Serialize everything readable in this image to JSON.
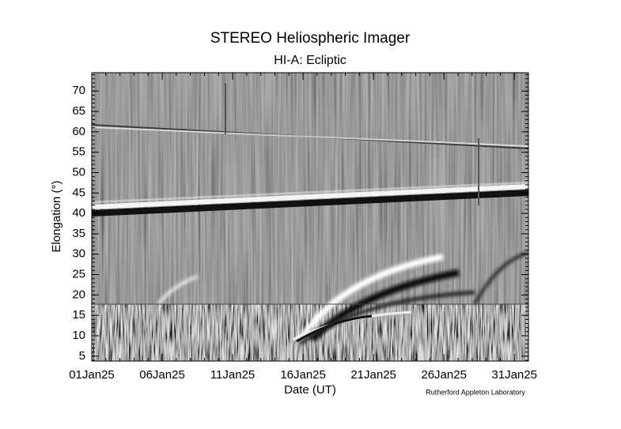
{
  "chart_data": {
    "type": "jmap",
    "title": "STEREO Heliospheric Imager",
    "subtitle": "HI-A: Ecliptic",
    "x_label": "Date (UT)",
    "y_label": "Elongation (°)",
    "credit": "Rutherford Appleton Laboratory",
    "xlim": [
      "2025-01-01",
      "2025-02-01"
    ],
    "xticks": [
      {
        "value": "2025-01-01",
        "label": "01Jan25"
      },
      {
        "value": "2025-01-06",
        "label": "06Jan25"
      },
      {
        "value": "2025-01-11",
        "label": "11Jan25"
      },
      {
        "value": "2025-01-16",
        "label": "16Jan25"
      },
      {
        "value": "2025-01-21",
        "label": "21Jan25"
      },
      {
        "value": "2025-01-26",
        "label": "26Jan25"
      },
      {
        "value": "2025-01-31",
        "label": "31Jan25"
      }
    ],
    "ylim": [
      3.8,
      74.5
    ],
    "yticks": [
      5,
      10,
      15,
      20,
      25,
      30,
      35,
      40,
      45,
      50,
      55,
      60,
      65,
      70
    ]
  }
}
